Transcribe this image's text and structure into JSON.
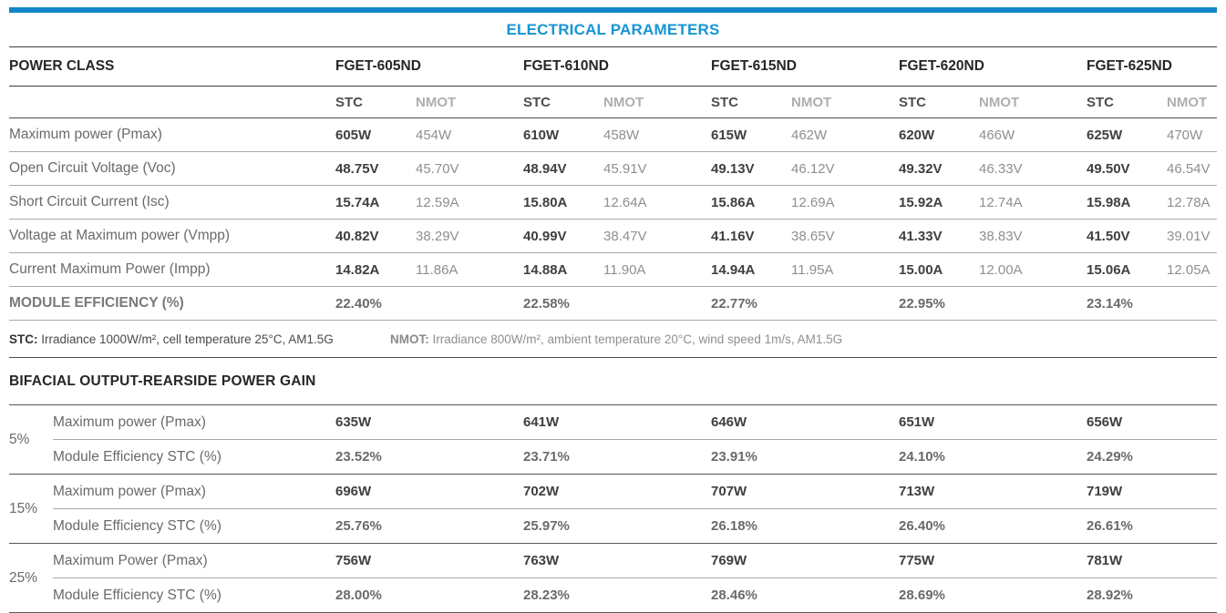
{
  "title": "ELECTRICAL PARAMETERS",
  "colors": {
    "accent_bar": "#1187c7",
    "title_blue": "#1795d3"
  },
  "main_table": {
    "header_label": "POWER CLASS",
    "models": [
      "FGET-605ND",
      "FGET-610ND",
      "FGET-615ND",
      "FGET-620ND",
      "FGET-625ND"
    ],
    "subheaders": {
      "stc": "STC",
      "nmot": "NMOT"
    },
    "rows": [
      {
        "label": "Maximum power (Pmax)",
        "values": [
          [
            "605W",
            "454W"
          ],
          [
            "610W",
            "458W"
          ],
          [
            "615W",
            "462W"
          ],
          [
            "620W",
            "466W"
          ],
          [
            "625W",
            "470W"
          ]
        ]
      },
      {
        "label": "Open Circuit Voltage (Voc)",
        "values": [
          [
            "48.75V",
            "45.70V"
          ],
          [
            "48.94V",
            "45.91V"
          ],
          [
            "49.13V",
            "46.12V"
          ],
          [
            "49.32V",
            "46.33V"
          ],
          [
            "49.50V",
            "46.54V"
          ]
        ]
      },
      {
        "label": "Short Circuit Current (Isc)",
        "values": [
          [
            "15.74A",
            "12.59A"
          ],
          [
            "15.80A",
            "12.64A"
          ],
          [
            "15.86A",
            "12.69A"
          ],
          [
            "15.92A",
            "12.74A"
          ],
          [
            "15.98A",
            "12.78A"
          ]
        ]
      },
      {
        "label": "Voltage at Maximum power (Vmpp)",
        "values": [
          [
            "40.82V",
            "38.29V"
          ],
          [
            "40.99V",
            "38.47V"
          ],
          [
            "41.16V",
            "38.65V"
          ],
          [
            "41.33V",
            "38.83V"
          ],
          [
            "41.50V",
            "39.01V"
          ]
        ]
      },
      {
        "label": "Current Maximum Power (Impp)",
        "values": [
          [
            "14.82A",
            "11.86A"
          ],
          [
            "14.88A",
            "11.90A"
          ],
          [
            "14.94A",
            "11.95A"
          ],
          [
            "15.00A",
            "12.00A"
          ],
          [
            "15.06A",
            "12.05A"
          ]
        ]
      },
      {
        "label": "MODULE EFFICIENCY (%)",
        "efficiency": true,
        "values": [
          [
            "22.40%",
            ""
          ],
          [
            "22.58%",
            ""
          ],
          [
            "22.77%",
            ""
          ],
          [
            "22.95%",
            ""
          ],
          [
            "23.14%",
            ""
          ]
        ]
      }
    ]
  },
  "footnotes": {
    "stc_label": "STC:",
    "stc_text": " Irradiance 1000W/m², cell temperature 25°C, AM1.5G",
    "nmot_label": "NMOT:",
    "nmot_text": " Irradiance 800W/m², ambient temperature 20°C, wind speed 1m/s, AM1.5G"
  },
  "bifacial": {
    "heading": "BIFACIAL OUTPUT-REARSIDE POWER GAIN",
    "groups": [
      {
        "gain": "5%",
        "rows": [
          {
            "label": "Maximum power (Pmax)",
            "type": "power",
            "values": [
              "635W",
              "641W",
              "646W",
              "651W",
              "656W"
            ]
          },
          {
            "label": "Module Efficiency STC (%)",
            "type": "efficiency",
            "values": [
              "23.52%",
              "23.71%",
              "23.91%",
              "24.10%",
              "24.29%"
            ]
          }
        ]
      },
      {
        "gain": "15%",
        "rows": [
          {
            "label": "Maximum power (Pmax)",
            "type": "power",
            "values": [
              "696W",
              "702W",
              "707W",
              "713W",
              "719W"
            ]
          },
          {
            "label": "Module Efficiency STC (%)",
            "type": "efficiency",
            "values": [
              "25.76%",
              "25.97%",
              "26.18%",
              "26.40%",
              "26.61%"
            ]
          }
        ]
      },
      {
        "gain": "25%",
        "rows": [
          {
            "label": "Maximum Power (Pmax)",
            "type": "power",
            "values": [
              "756W",
              "763W",
              "769W",
              "775W",
              "781W"
            ]
          },
          {
            "label": "Module Efficiency STC (%)",
            "type": "efficiency",
            "values": [
              "28.00%",
              "28.23%",
              "28.46%",
              "28.69%",
              "28.92%"
            ]
          }
        ]
      }
    ]
  }
}
